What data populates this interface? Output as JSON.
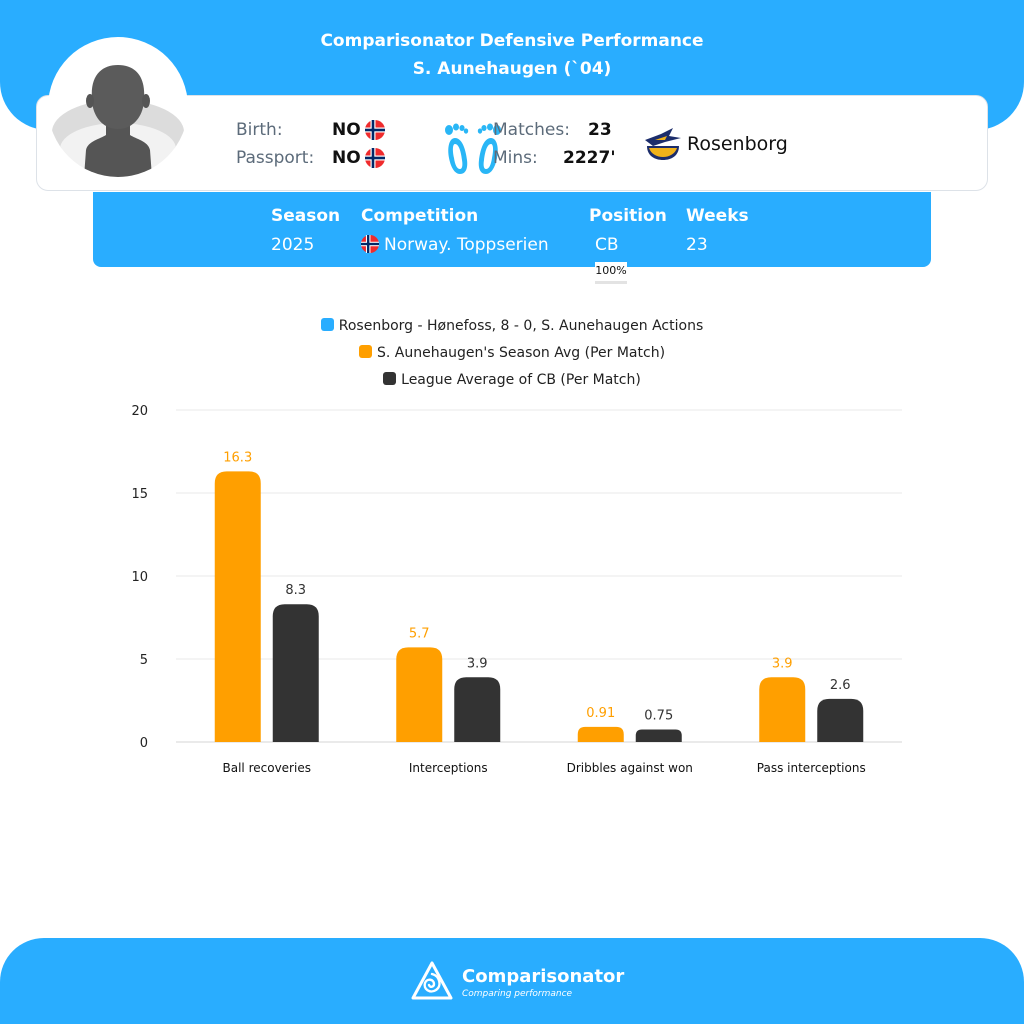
{
  "header": {
    "title_line1": "Comparisonator Defensive Performance",
    "title_line2": "S. Aunehaugen (`04)"
  },
  "player": {
    "birth_label": "Birth:",
    "birth_value": "NO",
    "passport_label": "Passport:",
    "passport_value": "NO",
    "matches_label": "Matches:",
    "matches_value": "23",
    "mins_label": "Mins:",
    "mins_value": "2227'",
    "club": "Rosenborg",
    "avatar_icon": "player-silhouette-icon",
    "foot_icon": "both-feet-icon",
    "flag_icon": "norway-flag-icon"
  },
  "season_info": {
    "headers": [
      "Season",
      "Competition",
      "Position",
      "Weeks"
    ],
    "season": "2025",
    "competition": "Norway. Toppserien",
    "position": "CB",
    "position_pct": "100%",
    "weeks": "23"
  },
  "colors": {
    "brand_blue": "#29adff",
    "series_match": "#29adff",
    "series_season": "#ff9f00",
    "series_league": "#333333"
  },
  "chart_data": {
    "type": "bar",
    "categories": [
      "Ball recoveries",
      "Interceptions",
      "Dribbles against won",
      "Pass interceptions"
    ],
    "series": [
      {
        "name": "Rosenborg - Hønefoss, 8 - 0, S. Aunehaugen Actions",
        "values": [
          null,
          null,
          null,
          null
        ],
        "color": "#29adff"
      },
      {
        "name": "S. Aunehaugen's Season Avg (Per Match)",
        "values": [
          16.3,
          5.7,
          0.91,
          3.9
        ],
        "labels": [
          "16.3",
          "5.7",
          "0.91",
          "3.9"
        ],
        "color": "#ff9f00"
      },
      {
        "name": "League Average of CB (Per Match)",
        "values": [
          8.3,
          3.9,
          0.75,
          2.6
        ],
        "labels": [
          "8.3",
          "3.9",
          "0.75",
          "2.6"
        ],
        "color": "#333333"
      }
    ],
    "ylim": [
      0,
      20
    ],
    "yticks": [
      "0",
      "5",
      "10",
      "15",
      "20"
    ],
    "grid": true,
    "legend_position": "top-center"
  },
  "footer": {
    "brand": "Comparisonator",
    "tagline": "Comparing performance",
    "logo_icon": "comparisonator-logo-icon"
  }
}
